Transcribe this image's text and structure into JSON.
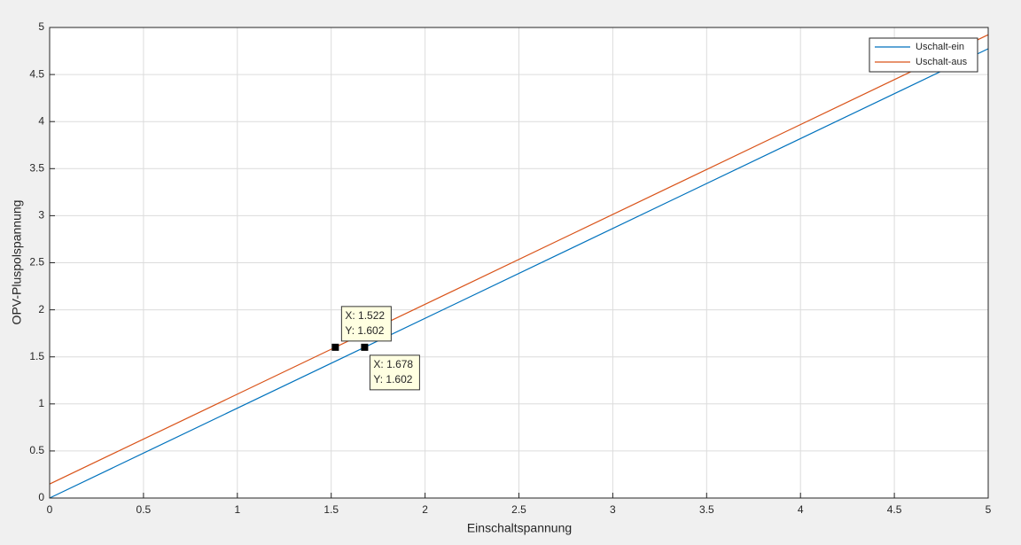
{
  "chart_data": {
    "type": "line",
    "x_label": "Einschaltspannung",
    "y_label": "OPV-Pluspolspannung",
    "x": [
      0,
      5
    ],
    "series": [
      {
        "name": "Uschalt-ein",
        "color": "#0072bd",
        "values": [
          0,
          4.774
        ]
      },
      {
        "name": "Uschalt-aus",
        "color": "#d95319",
        "values": [
          0.149,
          4.923
        ]
      }
    ],
    "xlim": [
      0,
      5
    ],
    "ylim": [
      0,
      5
    ],
    "xticks": [
      0,
      0.5,
      1,
      1.5,
      2,
      2.5,
      3,
      3.5,
      4,
      4.5,
      5
    ],
    "yticks": [
      0,
      0.5,
      1,
      1.5,
      2,
      2.5,
      3,
      3.5,
      4,
      4.5,
      5
    ],
    "grid": true,
    "legend": "northeast",
    "datatips": [
      {
        "x": 1.522,
        "y": 1.602,
        "x_label": "X: 1.522",
        "y_label": "Y: 1.602"
      },
      {
        "x": 1.678,
        "y": 1.602,
        "x_label": "X: 1.678",
        "y_label": "Y: 1.602"
      }
    ]
  }
}
